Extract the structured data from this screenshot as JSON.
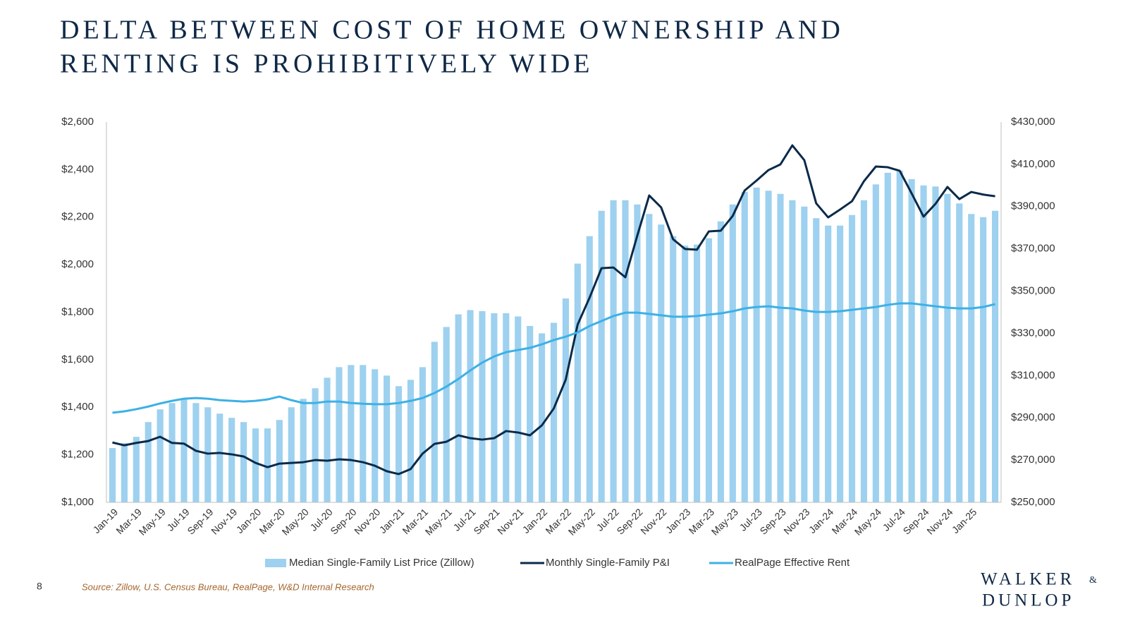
{
  "chart_data": {
    "type": "bar",
    "title": [
      "DELTA BETWEEN COST OF HOME OWNERSHIP AND",
      "RENTING IS PROHIBITIVELY WIDE"
    ],
    "categories": [
      "Jan-19",
      null,
      "Mar-19",
      null,
      "May-19",
      null,
      "Jul-19",
      null,
      "Sep-19",
      null,
      "Nov-19",
      null,
      "Jan-20",
      null,
      "Mar-20",
      null,
      "May-20",
      null,
      "Jul-20",
      null,
      "Sep-20",
      null,
      "Nov-20",
      null,
      "Jan-21",
      null,
      "Mar-21",
      null,
      "May-21",
      null,
      "Jul-21",
      null,
      "Sep-21",
      null,
      "Nov-21",
      null,
      "Jan-22",
      null,
      "Mar-22",
      null,
      "May-22",
      null,
      "Jul-22",
      null,
      "Sep-22",
      null,
      "Nov-22",
      null,
      "Jan-23",
      null,
      "Mar-23",
      null,
      "May-23",
      null,
      "Jul-23",
      null,
      "Sep-23",
      null,
      "Nov-23",
      null,
      "Jan-24",
      null,
      "Mar-24",
      null,
      "May-24",
      null,
      "Jul-24",
      null,
      "Sep-24",
      null,
      "Nov-24",
      null,
      "Jan-25",
      null,
      null
    ],
    "series": [
      {
        "name": "Median Single-Family List Price (Zillow)",
        "type": "bar",
        "axis": "y2",
        "color": "#9dd1ef",
        "values": [
          275700,
          278000,
          281000,
          288000,
          294000,
          297000,
          299000,
          297000,
          295000,
          292000,
          290000,
          288000,
          285000,
          285000,
          289000,
          295000,
          299000,
          304000,
          309000,
          314000,
          315000,
          315000,
          313000,
          310000,
          305000,
          308000,
          314000,
          326000,
          333000,
          339000,
          341000,
          340500,
          339500,
          339500,
          338000,
          333500,
          330000,
          335000,
          346500,
          363000,
          376000,
          388000,
          393000,
          393000,
          391000,
          386500,
          381500,
          376000,
          371500,
          372000,
          375000,
          383000,
          391000,
          397000,
          399000,
          397500,
          396000,
          393000,
          390000,
          384500,
          381000,
          381000,
          386000,
          393000,
          400500,
          406000,
          407000,
          403000,
          400000,
          399500,
          396000,
          391500,
          386500,
          385000,
          388000
        ]
      },
      {
        "name": "Monthly Single-Family P&I",
        "type": "line",
        "color": "#0b2a4a",
        "values": [
          1252,
          1240,
          1250,
          1258,
          1276,
          1250,
          1247,
          1217,
          1205,
          1208,
          1202,
          1193,
          1166,
          1148,
          1163,
          1166,
          1169,
          1178,
          1175,
          1181,
          1178,
          1169,
          1154,
          1131,
          1119,
          1140,
          1205,
          1246,
          1255,
          1282,
          1270,
          1264,
          1270,
          1300,
          1294,
          1282,
          1324,
          1395,
          1516,
          1748,
          1861,
          1985,
          1988,
          1947,
          2122,
          2291,
          2241,
          2107,
          2066,
          2063,
          2140,
          2143,
          2205,
          2312,
          2354,
          2398,
          2422,
          2502,
          2440,
          2258,
          2199,
          2232,
          2267,
          2351,
          2413,
          2410,
          2395,
          2300,
          2202,
          2256,
          2327,
          2276,
          2306,
          2295,
          2288
        ]
      },
      {
        "name": "RealPage Effective Rent",
        "type": "line",
        "color": "#3db0e6",
        "values": [
          1377,
          1383,
          1392,
          1403,
          1416,
          1427,
          1436,
          1439,
          1436,
          1430,
          1427,
          1424,
          1427,
          1433,
          1445,
          1430,
          1418,
          1418,
          1424,
          1424,
          1418,
          1415,
          1413,
          1413,
          1418,
          1427,
          1439,
          1460,
          1487,
          1519,
          1555,
          1588,
          1614,
          1632,
          1641,
          1650,
          1665,
          1683,
          1697,
          1715,
          1742,
          1763,
          1784,
          1798,
          1798,
          1793,
          1787,
          1781,
          1781,
          1784,
          1790,
          1795,
          1804,
          1816,
          1822,
          1825,
          1819,
          1816,
          1807,
          1801,
          1801,
          1804,
          1810,
          1816,
          1822,
          1831,
          1837,
          1837,
          1831,
          1825,
          1819,
          1816,
          1816,
          1822,
          1834
        ]
      }
    ],
    "ylim": [
      1000,
      2600
    ],
    "yticks": [
      {
        "value": 1000,
        "label": "$1,000"
      },
      {
        "value": 1200,
        "label": "$1,200"
      },
      {
        "value": 1400,
        "label": "$1,400"
      },
      {
        "value": 1600,
        "label": "$1,600"
      },
      {
        "value": 1800,
        "label": "$1,800"
      },
      {
        "value": 2000,
        "label": "$2,000"
      },
      {
        "value": 2200,
        "label": "$2,200"
      },
      {
        "value": 2400,
        "label": "$2,400"
      },
      {
        "value": 2600,
        "label": "$2,600"
      }
    ],
    "y2lim": [
      250000,
      430000
    ],
    "y2ticks": [
      {
        "value": 250000,
        "label": "$250,000"
      },
      {
        "value": 270000,
        "label": "$270,000"
      },
      {
        "value": 290000,
        "label": "$290,000"
      },
      {
        "value": 310000,
        "label": "$310,000"
      },
      {
        "value": 330000,
        "label": "$330,000"
      },
      {
        "value": 350000,
        "label": "$350,000"
      },
      {
        "value": 370000,
        "label": "$370,000"
      },
      {
        "value": 390000,
        "label": "$390,000"
      },
      {
        "value": 410000,
        "label": "$410,000"
      },
      {
        "value": 430000,
        "label": "$430,000"
      }
    ],
    "grid": false,
    "legend": "bottom"
  },
  "footer": {
    "page_number": "8",
    "source": "Source: Zillow, U.S. Census Bureau, RealPage, W&D Internal Research"
  },
  "logo": {
    "line1": "WALKER",
    "ampersand": "&",
    "line2": "DUNLOP"
  }
}
